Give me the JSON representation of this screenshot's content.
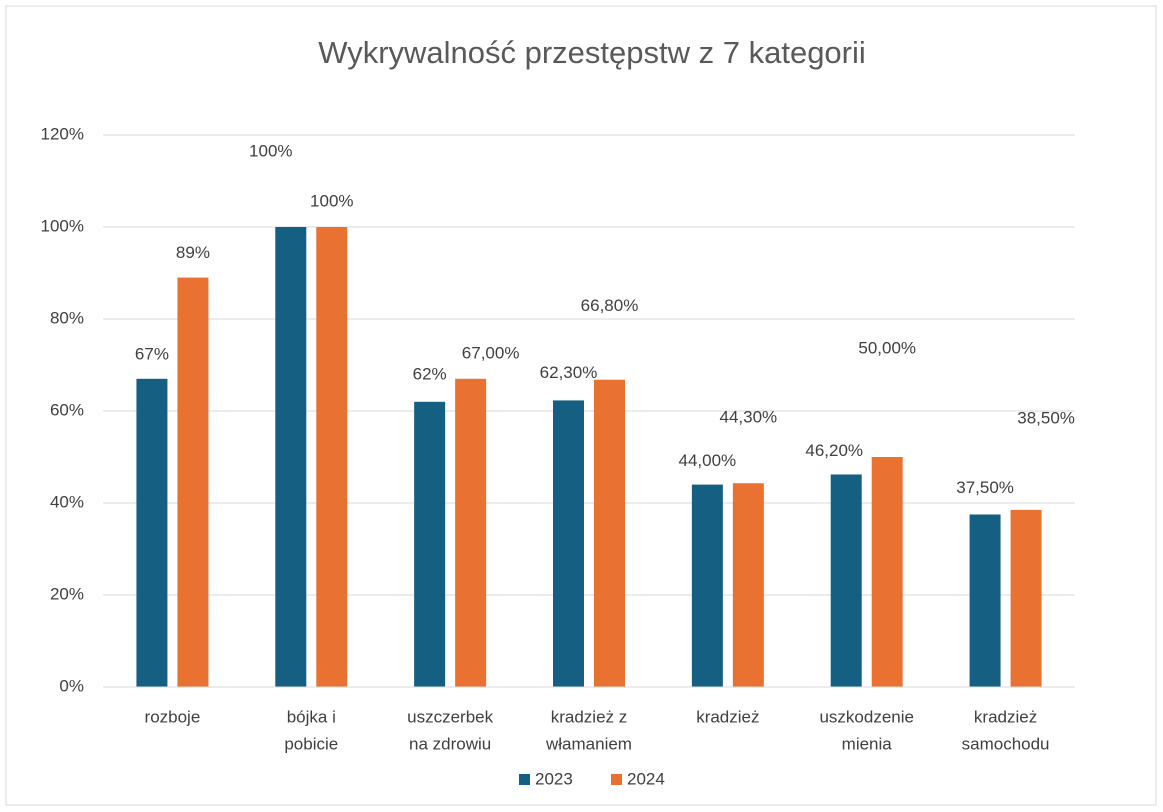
{
  "chart_data": {
    "type": "bar",
    "title": "Wykrywalność przestępstw z 7 kategorii",
    "categories": [
      [
        "rozboje"
      ],
      [
        "bójka i",
        "pobicie"
      ],
      [
        "uszczerbek",
        "na zdrowiu"
      ],
      [
        "kradzież z",
        "włamaniem"
      ],
      [
        "kradzież"
      ],
      [
        "uszkodzenie",
        "mienia"
      ],
      [
        "kradzież",
        "samochodu"
      ]
    ],
    "series": [
      {
        "name": "2023",
        "color": "#156082",
        "values": [
          67,
          100,
          62,
          62.3,
          44,
          46.2,
          37.5
        ],
        "value_labels": [
          "67%",
          "100%",
          "62%",
          "62,30%",
          "44,00%",
          "46,20%",
          "37,50%"
        ]
      },
      {
        "name": "2024",
        "color": "#e97132",
        "values": [
          89,
          100,
          67,
          66.8,
          44.3,
          50,
          38.5
        ],
        "value_labels": [
          "89%",
          "100%",
          "67,00%",
          "66,80%",
          "44,30%",
          "50,00%",
          "38,50%"
        ]
      }
    ],
    "ylim": [
      0,
      120
    ],
    "yticks": [
      {
        "value": 0,
        "label": "0%"
      },
      {
        "value": 20,
        "label": "20%"
      },
      {
        "value": 40,
        "label": "40%"
      },
      {
        "value": 60,
        "label": "60%"
      },
      {
        "value": 80,
        "label": "80%"
      },
      {
        "value": 100,
        "label": "100%"
      },
      {
        "value": 120,
        "label": "120%"
      }
    ],
    "grid": true,
    "legend": "bottom"
  }
}
